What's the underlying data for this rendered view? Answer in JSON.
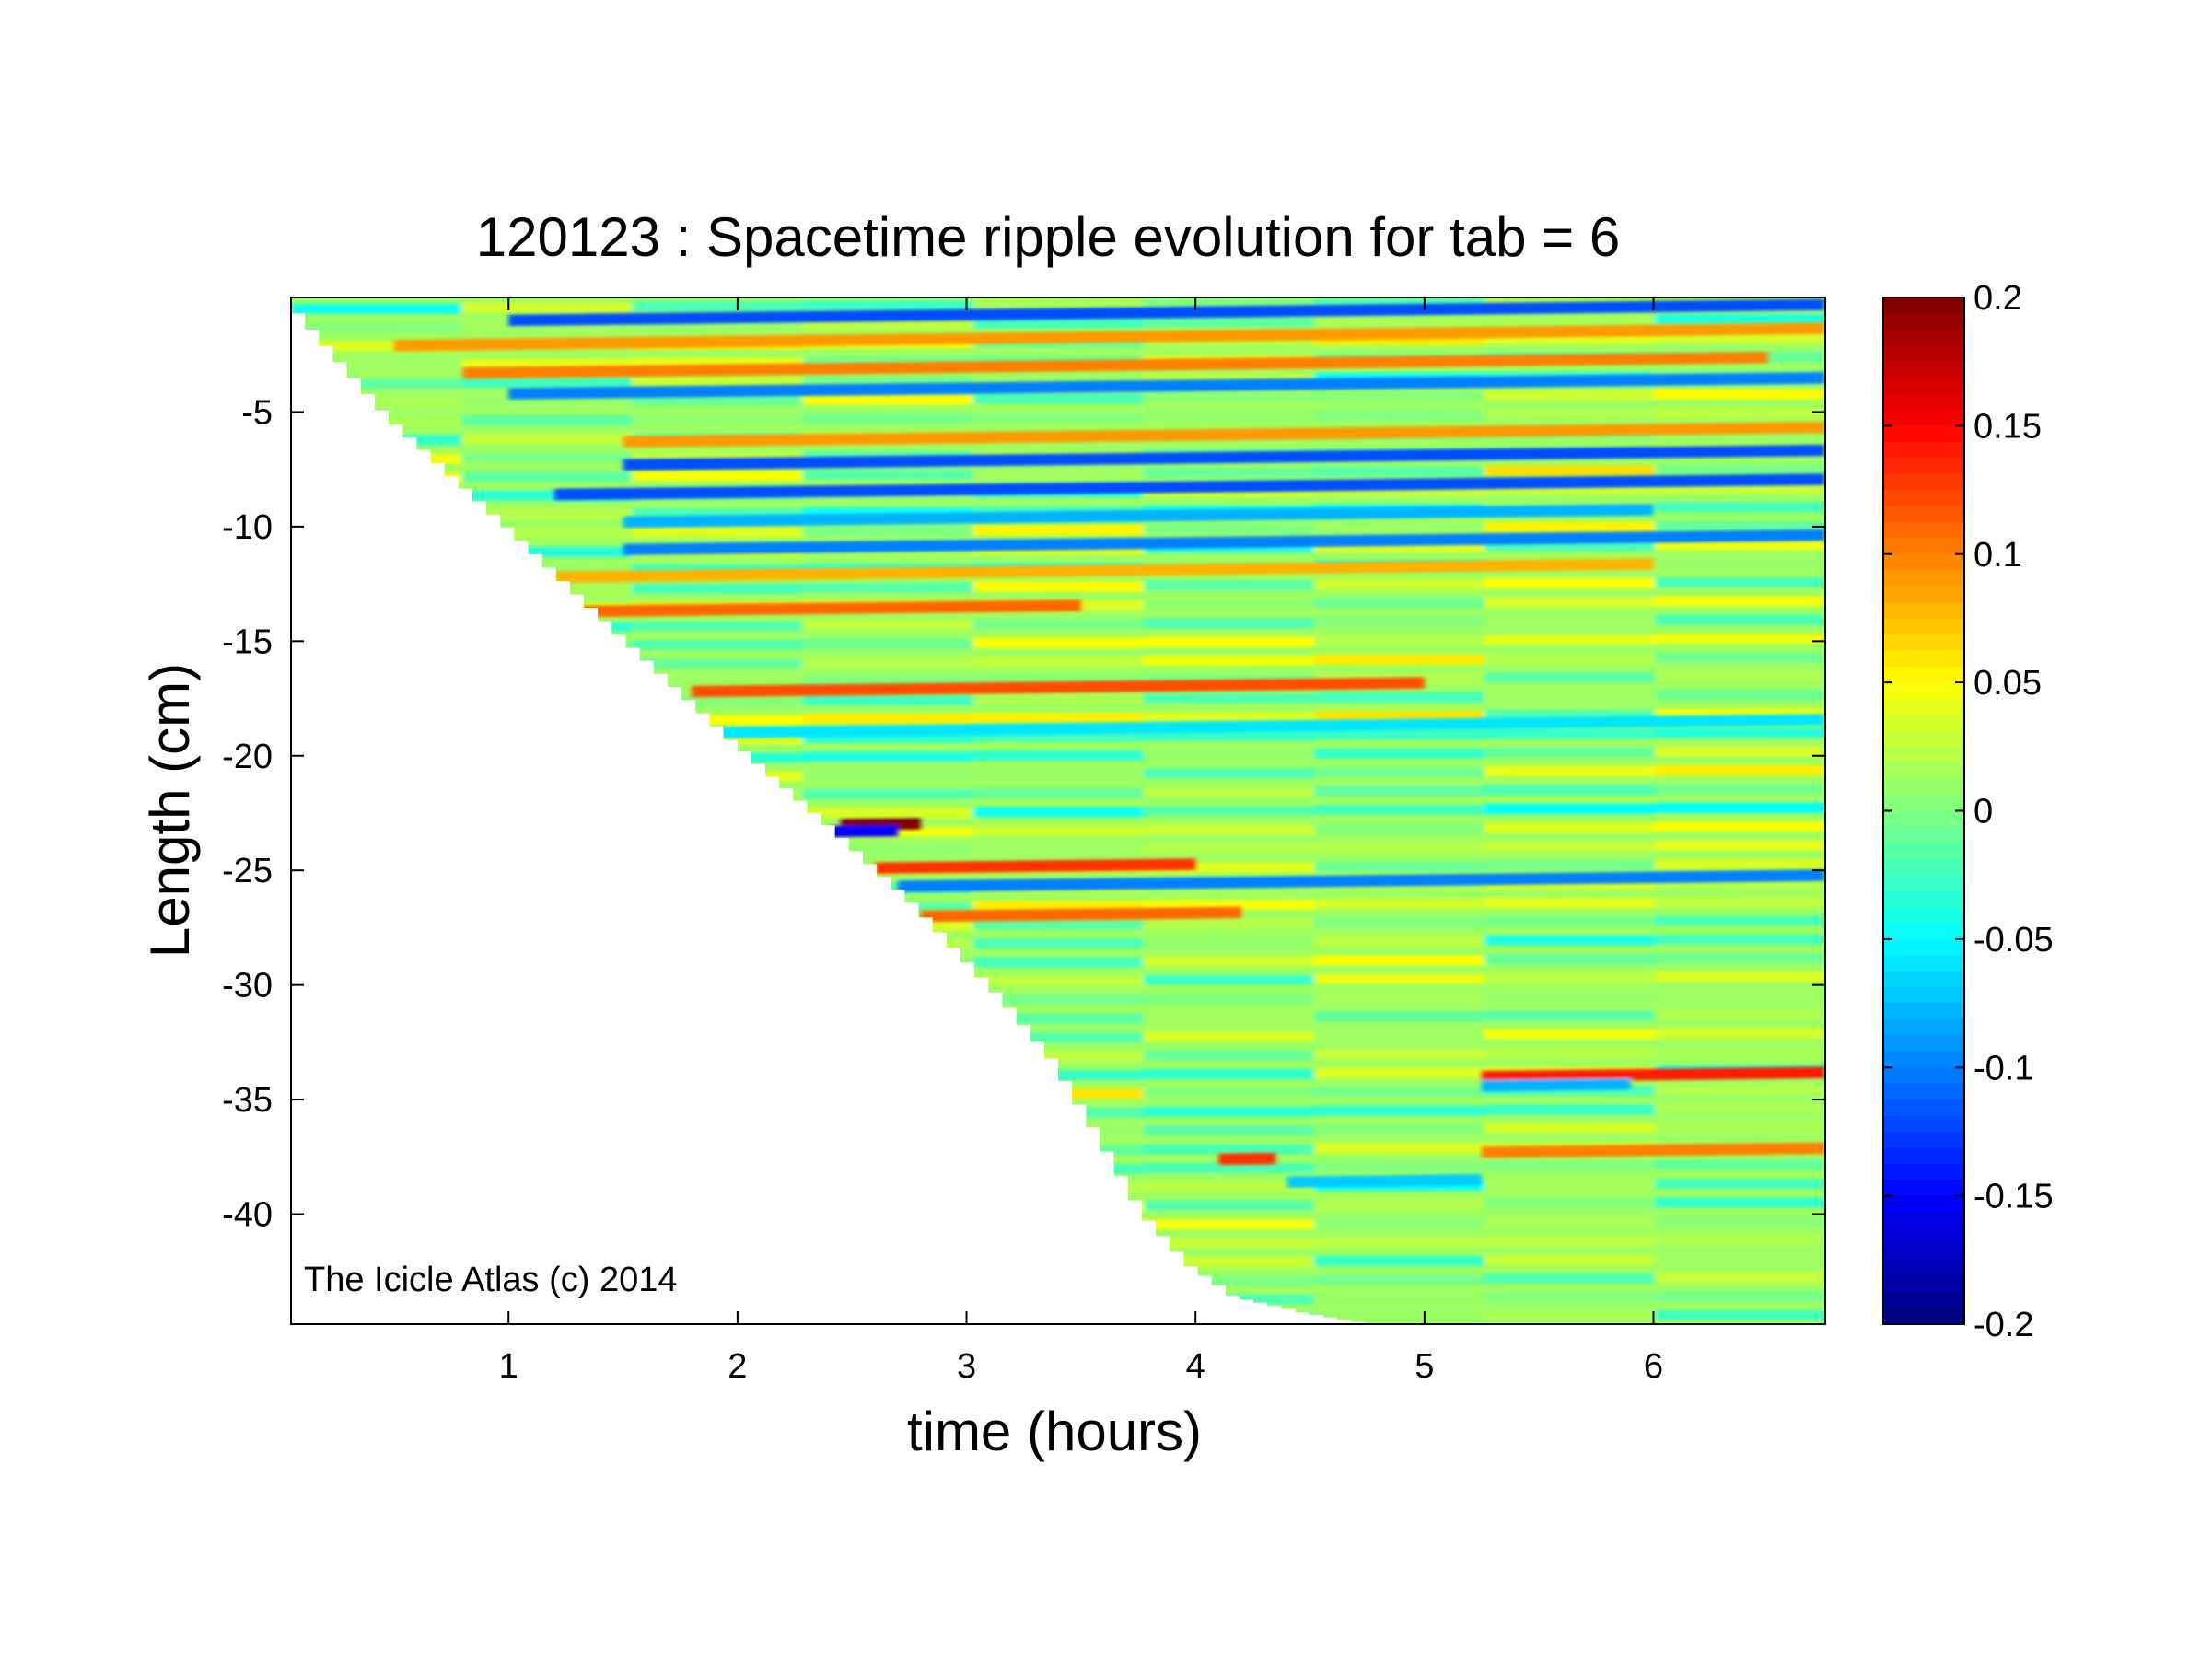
{
  "chart_data": {
    "type": "heatmap",
    "title": "120123 : Spacetime ripple evolution for tab = 6",
    "xlabel": "time (hours)",
    "ylabel": "Length (cm)",
    "xlim": [
      0.05,
      6.75
    ],
    "ylim": [
      -44.8,
      0
    ],
    "xticks": [
      1,
      2,
      3,
      4,
      5,
      6
    ],
    "xtick_labels": [
      "1",
      "2",
      "3",
      "4",
      "5",
      "6"
    ],
    "yticks": [
      -5,
      -10,
      -15,
      -20,
      -25,
      -30,
      -35,
      -40
    ],
    "ytick_labels": [
      "-5",
      "-10",
      "-15",
      "-20",
      "-25",
      "-30",
      "-35",
      "-40"
    ],
    "colorbar": {
      "colormap": "jet",
      "range": [
        -0.2,
        0.2
      ],
      "ticks": [
        0.2,
        0.15,
        0.1,
        0.05,
        0,
        -0.05,
        -0.1,
        -0.15,
        -0.2
      ],
      "tick_labels": [
        "0.2",
        "0.15",
        "0.1",
        "0.05",
        "0",
        "-0.05",
        "-0.1",
        "-0.15",
        "-0.2"
      ]
    },
    "data_boundary": {
      "description": "lower edge of the colored region: icicle tip length vs time",
      "time": [
        0.05,
        0.5,
        1.0,
        1.5,
        2.0,
        2.4,
        2.8,
        3.2,
        3.4,
        3.6,
        3.8,
        4.0,
        4.2,
        4.5,
        4.8,
        5.2,
        6.0,
        6.75
      ],
      "length": [
        0,
        -5.2,
        -9.8,
        -14.6,
        -19.3,
        -22.8,
        -26.5,
        -30.8,
        -33.2,
        -36.5,
        -40.0,
        -42.2,
        -43.6,
        -44.3,
        -44.8,
        -44.8,
        -44.8,
        -44.8
      ]
    },
    "ripple_features": [
      {
        "length": -1.0,
        "t_start": 1.0,
        "t_end": 6.75,
        "value": -0.12
      },
      {
        "length": -2.1,
        "t_start": 0.5,
        "t_end": 6.75,
        "value": 0.09
      },
      {
        "length": -3.3,
        "t_start": 0.8,
        "t_end": 6.5,
        "value": 0.1
      },
      {
        "length": -4.2,
        "t_start": 1.0,
        "t_end": 6.75,
        "value": -0.1
      },
      {
        "length": -6.3,
        "t_start": 1.5,
        "t_end": 6.75,
        "value": 0.09
      },
      {
        "length": -7.3,
        "t_start": 1.5,
        "t_end": 6.75,
        "value": -0.12
      },
      {
        "length": -8.6,
        "t_start": 1.2,
        "t_end": 6.75,
        "value": -0.12
      },
      {
        "length": -9.8,
        "t_start": 1.5,
        "t_end": 6.0,
        "value": -0.08
      },
      {
        "length": -11.0,
        "t_start": 1.5,
        "t_end": 6.75,
        "value": -0.1
      },
      {
        "length": -12.2,
        "t_start": 1.2,
        "t_end": 6.0,
        "value": 0.08
      },
      {
        "length": -13.7,
        "t_start": 1.3,
        "t_end": 3.5,
        "value": 0.11
      },
      {
        "length": -17.2,
        "t_start": 1.8,
        "t_end": 5.0,
        "value": 0.12
      },
      {
        "length": -19.0,
        "t_start": 1.9,
        "t_end": 6.75,
        "value": -0.06
      },
      {
        "length": -23.0,
        "t_start": 2.45,
        "t_end": 2.8,
        "value": 0.2
      },
      {
        "length": -23.3,
        "t_start": 2.4,
        "t_end": 2.7,
        "value": -0.15
      },
      {
        "length": -24.9,
        "t_start": 2.6,
        "t_end": 4.0,
        "value": 0.13
      },
      {
        "length": -25.7,
        "t_start": 2.7,
        "t_end": 6.75,
        "value": -0.1
      },
      {
        "length": -27.0,
        "t_start": 2.8,
        "t_end": 4.2,
        "value": 0.11
      },
      {
        "length": -34.0,
        "t_start": 5.25,
        "t_end": 6.75,
        "value": 0.14
      },
      {
        "length": -34.4,
        "t_start": 5.25,
        "t_end": 5.9,
        "value": -0.08
      },
      {
        "length": -37.3,
        "t_start": 5.25,
        "t_end": 6.75,
        "value": 0.1
      },
      {
        "length": -37.6,
        "t_start": 4.1,
        "t_end": 4.35,
        "value": 0.13
      },
      {
        "length": -38.6,
        "t_start": 4.4,
        "t_end": 5.25,
        "value": -0.07
      }
    ]
  },
  "annotation": "The Icicle Atlas (c) 2014"
}
